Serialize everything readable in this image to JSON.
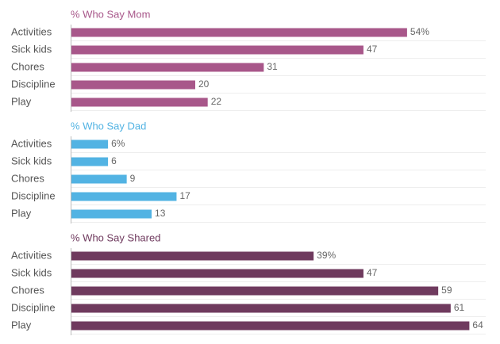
{
  "chart_data": [
    {
      "type": "bar",
      "orientation": "horizontal",
      "title": "% Who Say Mom",
      "color": "#a8578a",
      "categories": [
        "Activities",
        "Sick kids",
        "Chores",
        "Discipline",
        "Play"
      ],
      "values": [
        54,
        47,
        31,
        20,
        22
      ],
      "value_labels": [
        "54%",
        "47",
        "31",
        "20",
        "22"
      ],
      "xlim": [
        0,
        70
      ]
    },
    {
      "type": "bar",
      "orientation": "horizontal",
      "title": "% Who Say Dad",
      "color": "#52b3e3",
      "categories": [
        "Activities",
        "Sick kids",
        "Chores",
        "Discipline",
        "Play"
      ],
      "values": [
        6,
        6,
        9,
        17,
        13
      ],
      "value_labels": [
        "6%",
        "6",
        "9",
        "17",
        "13"
      ],
      "xlim": [
        0,
        70
      ]
    },
    {
      "type": "bar",
      "orientation": "horizontal",
      "title": "% Who Say Shared",
      "color": "#6f3a5e",
      "categories": [
        "Activities",
        "Sick kids",
        "Chores",
        "Discipline",
        "Play"
      ],
      "values": [
        39,
        47,
        59,
        61,
        64
      ],
      "value_labels": [
        "39%",
        "47",
        "59",
        "61",
        "64"
      ],
      "xlim": [
        0,
        70
      ]
    }
  ]
}
